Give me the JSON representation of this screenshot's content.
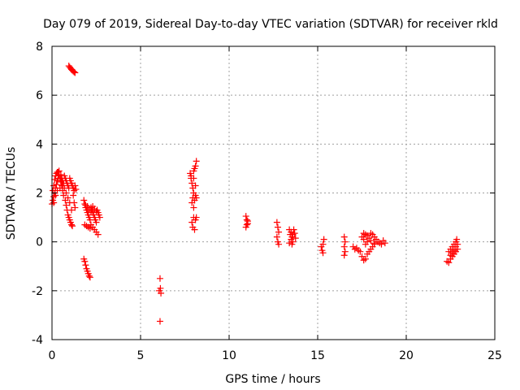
{
  "chart_data": {
    "type": "scatter",
    "title": "Day 079 of 2019, Sidereal Day-to-day VTEC variation (SDTVAR) for receiver rkld",
    "xlabel": "GPS time / hours",
    "ylabel": "SDTVAR / TECUs",
    "xlim": [
      0,
      25
    ],
    "ylim": [
      -4,
      8
    ],
    "xticks": [
      0,
      5,
      10,
      15,
      20,
      25
    ],
    "yticks": [
      -4,
      -2,
      0,
      2,
      4,
      6,
      8
    ],
    "xtick_labels": [
      "0",
      "5",
      "10",
      "15",
      "20",
      "25"
    ],
    "ytick_labels": [
      "-4",
      "-2",
      "0",
      "2",
      "4",
      "6",
      "8"
    ],
    "grid": true,
    "marker": "plus",
    "series_color": "#ff0000",
    "series": [
      {
        "name": "SDTVAR",
        "points": [
          [
            0.95,
            7.2
          ],
          [
            1.0,
            7.15
          ],
          [
            1.05,
            7.1
          ],
          [
            1.1,
            7.05
          ],
          [
            1.15,
            7.02
          ],
          [
            1.2,
            6.98
          ],
          [
            1.25,
            6.95
          ],
          [
            1.3,
            6.92
          ],
          [
            0.0,
            1.55
          ],
          [
            0.05,
            1.7
          ],
          [
            0.05,
            2.1
          ],
          [
            0.1,
            1.85
          ],
          [
            0.1,
            2.3
          ],
          [
            0.15,
            2.0
          ],
          [
            0.15,
            2.55
          ],
          [
            0.2,
            2.2
          ],
          [
            0.2,
            2.7
          ],
          [
            0.25,
            2.35
          ],
          [
            0.25,
            2.8
          ],
          [
            0.3,
            2.5
          ],
          [
            0.3,
            2.85
          ],
          [
            0.35,
            2.6
          ],
          [
            0.35,
            2.85
          ],
          [
            0.4,
            2.7
          ],
          [
            0.4,
            2.9
          ],
          [
            0.45,
            2.6
          ],
          [
            0.5,
            2.75
          ],
          [
            0.5,
            2.45
          ],
          [
            0.55,
            2.6
          ],
          [
            0.55,
            2.3
          ],
          [
            0.6,
            2.5
          ],
          [
            0.6,
            2.1
          ],
          [
            0.65,
            2.4
          ],
          [
            0.65,
            1.9
          ],
          [
            0.7,
            2.7
          ],
          [
            0.7,
            2.2
          ],
          [
            0.75,
            2.6
          ],
          [
            0.75,
            1.7
          ],
          [
            0.8,
            2.5
          ],
          [
            0.8,
            1.5
          ],
          [
            0.85,
            2.4
          ],
          [
            0.85,
            1.3
          ],
          [
            0.9,
            2.3
          ],
          [
            0.9,
            1.1
          ],
          [
            0.95,
            2.2
          ],
          [
            0.95,
            1.0
          ],
          [
            1.0,
            2.6
          ],
          [
            1.0,
            0.9
          ],
          [
            1.05,
            2.5
          ],
          [
            1.05,
            0.8
          ],
          [
            1.1,
            2.4
          ],
          [
            1.1,
            0.7
          ],
          [
            1.15,
            2.3
          ],
          [
            1.15,
            0.65
          ],
          [
            1.2,
            2.2
          ],
          [
            1.2,
            1.9
          ],
          [
            1.25,
            2.1
          ],
          [
            1.25,
            1.6
          ],
          [
            1.3,
            2.3
          ],
          [
            1.3,
            1.4
          ],
          [
            1.35,
            2.15
          ],
          [
            0.1,
            1.6
          ],
          [
            0.2,
            1.9
          ],
          [
            0.3,
            2.1
          ],
          [
            0.45,
            2.2
          ],
          [
            0.6,
            2.3
          ],
          [
            0.8,
            2.0
          ],
          [
            0.9,
            1.8
          ],
          [
            1.0,
            1.6
          ],
          [
            1.1,
            1.3
          ],
          [
            1.8,
            -0.7
          ],
          [
            1.85,
            -0.8
          ],
          [
            1.9,
            -0.95
          ],
          [
            1.95,
            -1.1
          ],
          [
            2.0,
            -1.2
          ],
          [
            2.05,
            -1.3
          ],
          [
            2.1,
            -1.4
          ],
          [
            2.15,
            -1.45
          ],
          [
            1.8,
            1.7
          ],
          [
            1.85,
            1.55
          ],
          [
            1.9,
            1.4
          ],
          [
            1.95,
            1.3
          ],
          [
            2.0,
            1.2
          ],
          [
            2.05,
            1.1
          ],
          [
            2.1,
            1.0
          ],
          [
            2.15,
            0.9
          ],
          [
            2.2,
            1.4
          ],
          [
            2.25,
            1.3
          ],
          [
            2.3,
            1.2
          ],
          [
            2.35,
            1.1
          ],
          [
            2.4,
            1.0
          ],
          [
            2.45,
            0.9
          ],
          [
            2.5,
            0.8
          ],
          [
            2.55,
            1.3
          ],
          [
            2.6,
            1.2
          ],
          [
            2.65,
            1.1
          ],
          [
            2.7,
            1.0
          ],
          [
            2.2,
            0.7
          ],
          [
            2.3,
            0.6
          ],
          [
            2.4,
            0.5
          ],
          [
            2.5,
            0.4
          ],
          [
            2.6,
            0.3
          ],
          [
            1.85,
            0.7
          ],
          [
            1.95,
            0.65
          ],
          [
            2.05,
            0.6
          ],
          [
            2.15,
            0.55
          ],
          [
            1.9,
            1.5
          ],
          [
            2.0,
            1.45
          ],
          [
            2.1,
            1.35
          ],
          [
            2.2,
            1.25
          ],
          [
            2.3,
            1.45
          ],
          [
            2.4,
            1.35
          ],
          [
            2.5,
            1.25
          ],
          [
            6.1,
            -1.5
          ],
          [
            6.12,
            -1.9
          ],
          [
            6.15,
            -2.1
          ],
          [
            6.05,
            -2.0
          ],
          [
            6.1,
            -3.25
          ],
          [
            7.8,
            2.8
          ],
          [
            7.85,
            2.6
          ],
          [
            7.9,
            2.4
          ],
          [
            7.95,
            2.2
          ],
          [
            8.0,
            2.0
          ],
          [
            8.05,
            3.0
          ],
          [
            8.1,
            3.1
          ],
          [
            8.15,
            3.3
          ],
          [
            8.0,
            2.9
          ],
          [
            7.9,
            1.6
          ],
          [
            7.95,
            1.8
          ],
          [
            8.0,
            1.4
          ],
          [
            8.05,
            1.7
          ],
          [
            8.1,
            1.9
          ],
          [
            7.9,
            0.8
          ],
          [
            7.95,
            0.6
          ],
          [
            8.0,
            1.0
          ],
          [
            8.05,
            0.5
          ],
          [
            8.1,
            0.9
          ],
          [
            8.15,
            1.0
          ],
          [
            7.85,
            2.7
          ],
          [
            8.0,
            2.6
          ],
          [
            8.1,
            2.3
          ],
          [
            8.15,
            1.8
          ],
          [
            10.95,
            1.05
          ],
          [
            11.0,
            0.9
          ],
          [
            11.05,
            0.75
          ],
          [
            10.95,
            0.6
          ],
          [
            11.05,
            0.85
          ],
          [
            11.0,
            0.7
          ],
          [
            12.7,
            0.8
          ],
          [
            12.75,
            0.6
          ],
          [
            12.7,
            0.2
          ],
          [
            12.75,
            0.0
          ],
          [
            12.8,
            -0.1
          ],
          [
            12.8,
            0.4
          ],
          [
            13.4,
            0.5
          ],
          [
            13.45,
            0.3
          ],
          [
            13.5,
            0.1
          ],
          [
            13.5,
            0.4
          ],
          [
            13.55,
            0.2
          ],
          [
            13.6,
            0.0
          ],
          [
            13.65,
            0.5
          ],
          [
            13.6,
            0.3
          ],
          [
            13.7,
            0.35
          ],
          [
            13.75,
            0.15
          ],
          [
            13.4,
            -0.05
          ],
          [
            13.55,
            -0.1
          ],
          [
            15.2,
            -0.2
          ],
          [
            15.25,
            -0.35
          ],
          [
            15.3,
            -0.45
          ],
          [
            15.35,
            0.1
          ],
          [
            15.3,
            -0.1
          ],
          [
            16.5,
            0.2
          ],
          [
            16.55,
            0.0
          ],
          [
            16.5,
            -0.2
          ],
          [
            16.55,
            -0.4
          ],
          [
            16.5,
            -0.55
          ],
          [
            17.0,
            -0.2
          ],
          [
            17.1,
            -0.3
          ],
          [
            17.2,
            -0.25
          ],
          [
            17.3,
            -0.35
          ],
          [
            17.4,
            -0.4
          ],
          [
            17.5,
            -0.6
          ],
          [
            17.6,
            -0.75
          ],
          [
            17.7,
            -0.7
          ],
          [
            17.5,
            0.2
          ],
          [
            17.6,
            0.35
          ],
          [
            17.7,
            0.3
          ],
          [
            17.8,
            0.25
          ],
          [
            17.9,
            0.15
          ],
          [
            18.0,
            0.35
          ],
          [
            18.1,
            0.3
          ],
          [
            18.2,
            0.2
          ],
          [
            18.3,
            0.1
          ],
          [
            18.4,
            0.0
          ],
          [
            18.5,
            -0.05
          ],
          [
            18.6,
            -0.1
          ],
          [
            18.7,
            0.05
          ],
          [
            18.8,
            -0.05
          ],
          [
            17.8,
            -0.5
          ],
          [
            17.9,
            -0.4
          ],
          [
            18.0,
            -0.3
          ],
          [
            18.1,
            -0.2
          ],
          [
            18.2,
            -0.1
          ],
          [
            17.6,
            0.1
          ],
          [
            17.7,
            -0.1
          ],
          [
            17.8,
            0.0
          ],
          [
            18.0,
            0.05
          ],
          [
            18.2,
            -0.05
          ],
          [
            22.3,
            -0.8
          ],
          [
            22.4,
            -0.85
          ],
          [
            22.5,
            -0.7
          ],
          [
            22.6,
            -0.6
          ],
          [
            22.7,
            -0.5
          ],
          [
            22.8,
            -0.4
          ],
          [
            22.9,
            -0.3
          ],
          [
            22.4,
            -0.4
          ],
          [
            22.5,
            -0.3
          ],
          [
            22.6,
            -0.2
          ],
          [
            22.7,
            -0.1
          ],
          [
            22.8,
            0.0
          ],
          [
            22.85,
            0.1
          ],
          [
            22.5,
            -0.55
          ],
          [
            22.6,
            -0.45
          ],
          [
            22.7,
            -0.35
          ],
          [
            22.8,
            -0.2
          ],
          [
            22.9,
            -0.1
          ]
        ]
      }
    ]
  }
}
